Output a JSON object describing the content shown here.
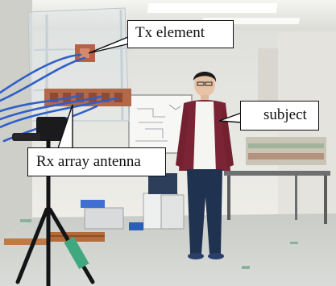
{
  "callouts": {
    "tx_element": "Tx element",
    "subject": "subject",
    "rx_array_antenna": "Rx array antenna"
  },
  "colors": {
    "wall": "#e9e8e2",
    "floor": "#cfd4d0",
    "cable_blue": "#2f5fc8",
    "cardigan": "#7a2435",
    "jeans": "#1f3250",
    "antenna_copper": "#b4684a"
  }
}
